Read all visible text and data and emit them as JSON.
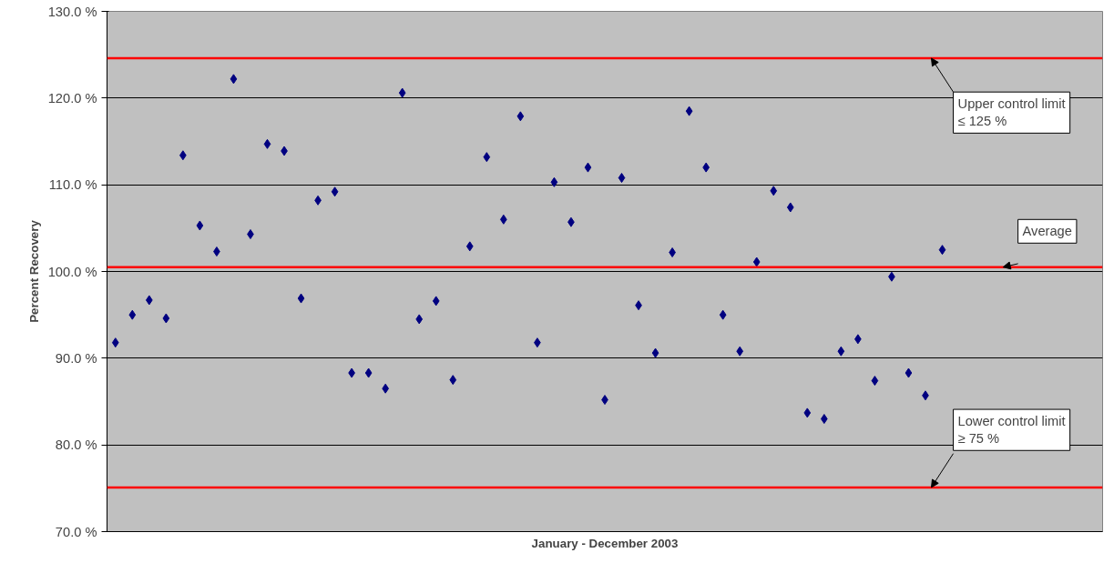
{
  "chart_data": {
    "type": "scatter",
    "xlabel": "January - December 2003",
    "ylabel": "Percent Recovery",
    "categories": [
      null,
      null,
      null,
      null,
      null,
      null,
      null,
      null,
      null,
      null,
      null,
      null,
      null,
      null,
      null,
      null,
      null,
      null,
      null,
      null,
      null,
      null,
      null,
      null,
      null,
      null,
      null,
      null,
      null,
      null,
      null,
      null,
      null,
      null,
      null,
      null,
      null,
      null,
      null,
      null,
      null,
      null,
      null,
      null,
      null,
      null,
      null,
      null,
      null,
      null,
      null,
      null,
      null,
      null,
      null,
      null,
      null,
      null,
      null
    ],
    "series": [
      {
        "color": "#000080",
        "values": [
          91.8,
          95.0,
          96.7,
          94.6,
          113.4,
          105.3,
          102.3,
          122.2,
          104.3,
          114.7,
          113.9,
          96.9,
          108.2,
          109.2,
          88.3,
          88.3,
          86.5,
          120.6,
          94.5,
          96.6,
          87.5,
          102.9,
          113.2,
          106.0,
          117.9,
          91.8,
          110.3,
          105.7,
          112.0,
          85.2,
          110.8,
          96.1,
          90.6,
          102.2,
          118.5,
          112.0,
          95.0,
          90.8,
          101.1,
          109.3,
          107.4,
          83.7,
          83.0,
          90.8,
          92.2,
          87.4,
          99.4,
          88.3,
          85.7,
          102.5,
          null,
          null,
          null,
          null,
          null,
          null,
          null,
          null,
          null
        ]
      }
    ],
    "marker": "diamond",
    "ylim": [
      70,
      130
    ],
    "yticks": [
      {
        "value": 70,
        "label": "70.0 %"
      },
      {
        "value": 80,
        "label": "80.0 %"
      },
      {
        "value": 90,
        "label": "90.0 %"
      },
      {
        "value": 100,
        "label": "100.0 %"
      },
      {
        "value": 110,
        "label": "110.0 %"
      },
      {
        "value": 120,
        "label": "120.0 %"
      },
      {
        "value": 130,
        "label": "130.0 %"
      }
    ],
    "grid": "y",
    "ref_lines": [
      {
        "axis": "y",
        "value": 124.6,
        "label": "Upper control limit\n≤ 125 %",
        "color": "#ff0000"
      },
      {
        "axis": "y",
        "value": 100.5,
        "label": "Average",
        "color": "#ff0000"
      },
      {
        "axis": "y",
        "value": 75.1,
        "label": "Lower control limit\n≥ 75 %",
        "color": "#ff0000"
      }
    ]
  }
}
